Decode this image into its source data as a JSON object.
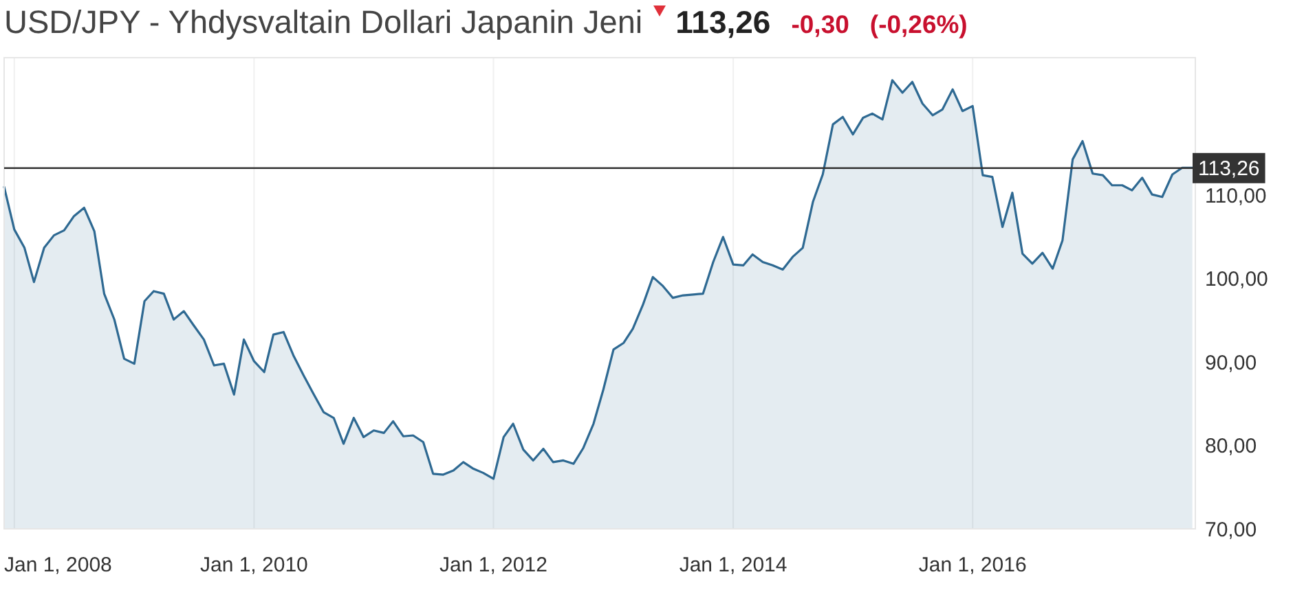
{
  "chart_data": {
    "type": "area",
    "title": "USD/JPY - Yhdysvaltain Dollari Japanin Jeni",
    "annotations": [
      "113,26",
      "-0,30",
      "(-0,26%)"
    ],
    "x": [
      "2007-12",
      "2008-01",
      "2008-02",
      "2008-03",
      "2008-04",
      "2008-05",
      "2008-06",
      "2008-07",
      "2008-08",
      "2008-09",
      "2008-10",
      "2008-11",
      "2008-12",
      "2009-01",
      "2009-02",
      "2009-03",
      "2009-04",
      "2009-05",
      "2009-06",
      "2009-07",
      "2009-08",
      "2009-09",
      "2009-10",
      "2009-11",
      "2009-12",
      "2010-01",
      "2010-02",
      "2010-03",
      "2010-04",
      "2010-05",
      "2010-06",
      "2010-07",
      "2010-08",
      "2010-09",
      "2010-10",
      "2010-11",
      "2010-12",
      "2011-01",
      "2011-02",
      "2011-03",
      "2011-04",
      "2011-05",
      "2011-06",
      "2011-07",
      "2011-08",
      "2011-09",
      "2011-10",
      "2011-11",
      "2011-12",
      "2012-01",
      "2012-02",
      "2012-03",
      "2012-04",
      "2012-05",
      "2012-06",
      "2012-07",
      "2012-08",
      "2012-09",
      "2012-10",
      "2012-11",
      "2012-12",
      "2013-01",
      "2013-02",
      "2013-03",
      "2013-04",
      "2013-05",
      "2013-06",
      "2013-07",
      "2013-08",
      "2013-09",
      "2013-10",
      "2013-11",
      "2013-12",
      "2014-01",
      "2014-02",
      "2014-03",
      "2014-04",
      "2014-05",
      "2014-06",
      "2014-07",
      "2014-08",
      "2014-09",
      "2014-10",
      "2014-11",
      "2014-12",
      "2015-01",
      "2015-02",
      "2015-03",
      "2015-04",
      "2015-05",
      "2015-06",
      "2015-07",
      "2015-08",
      "2015-09",
      "2015-10",
      "2015-11",
      "2015-12",
      "2016-01",
      "2016-02",
      "2016-03",
      "2016-04",
      "2016-05",
      "2016-06",
      "2016-07",
      "2016-08",
      "2016-09",
      "2016-10",
      "2016-11",
      "2016-12",
      "2017-01",
      "2017-02",
      "2017-03",
      "2017-04",
      "2017-05",
      "2017-06",
      "2017-07",
      "2017-08",
      "2017-09",
      "2017-10",
      "2017-11"
    ],
    "series": [
      {
        "color": "#2e6992",
        "values": [
          111.0,
          105.9,
          103.7,
          99.6,
          103.7,
          105.2,
          105.8,
          107.5,
          108.5,
          105.7,
          98.2,
          95.1,
          90.4,
          89.8,
          97.3,
          98.5,
          98.2,
          95.1,
          96.1,
          94.4,
          92.7,
          89.6,
          89.8,
          86.1,
          92.7,
          90.1,
          88.8,
          93.3,
          93.6,
          90.8,
          88.4,
          86.2,
          84.0,
          83.3,
          80.2,
          83.3,
          81.0,
          81.8,
          81.5,
          82.9,
          81.1,
          81.2,
          80.4,
          76.6,
          76.5,
          77.0,
          78.0,
          77.2,
          76.7,
          76.0,
          81.0,
          82.6,
          79.5,
          78.2,
          79.6,
          78.0,
          78.2,
          77.8,
          79.7,
          82.6,
          86.7,
          91.5,
          92.3,
          94.0,
          96.9,
          100.2,
          99.1,
          97.7,
          98.0,
          98.1,
          98.2,
          102.0,
          105.0,
          101.7,
          101.6,
          102.9,
          102.0,
          101.6,
          101.1,
          102.6,
          103.7,
          109.2,
          112.5,
          118.5,
          119.4,
          117.3,
          119.3,
          119.8,
          119.1,
          123.8,
          122.3,
          123.6,
          121.0,
          119.6,
          120.3,
          122.7,
          120.1,
          120.7,
          112.4,
          112.2,
          106.2,
          110.3,
          103.0,
          101.8,
          103.1,
          101.2,
          104.6,
          114.3,
          116.5,
          112.6,
          112.4,
          111.2,
          111.2,
          110.6,
          112.1,
          110.1,
          109.8,
          112.5,
          113.3,
          113.3
        ]
      }
    ],
    "xlim": [
      "2007-12-01",
      "2017-11-10"
    ],
    "ylim": [
      70,
      126.5
    ],
    "xticks": [
      {
        "value": "2008-01-01",
        "label": "Jan 1, 2008"
      },
      {
        "value": "2010-01-01",
        "label": "Jan 1, 2010"
      },
      {
        "value": "2012-01-01",
        "label": "Jan 1, 2012"
      },
      {
        "value": "2014-01-01",
        "label": "Jan 1, 2014"
      },
      {
        "value": "2016-01-01",
        "label": "Jan 1, 2016"
      }
    ],
    "yticks": [
      {
        "value": 70,
        "label": "70,00"
      },
      {
        "value": 80,
        "label": "80,00"
      },
      {
        "value": 90,
        "label": "90,00"
      },
      {
        "value": 100,
        "label": "100,00"
      },
      {
        "value": 110,
        "label": "110,00"
      }
    ],
    "grid": "x",
    "ref_lines": [
      {
        "axis": "y",
        "value": 113.26,
        "label": "113,26",
        "color": "#333333"
      }
    ]
  }
}
